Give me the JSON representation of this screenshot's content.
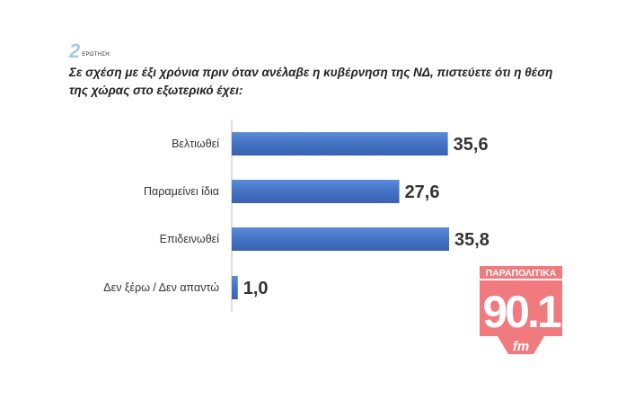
{
  "question": {
    "number": "2",
    "label": "ΕΡΩΤΗΣΗ:",
    "text": "Σε σχέση με έξι χρόνια πριν όταν ανέλαβε η κυβέρνηση της ΝΔ, πιστεύετε ότι η θέση της χώρας στο εξωτερικό έχει:"
  },
  "chart_data": {
    "type": "bar",
    "orientation": "horizontal",
    "categories": [
      "Βελτιωθεί",
      "Παραμείνει ίδια",
      "Επιδεινωθεί",
      "Δεν ξέρω / Δεν απαντώ"
    ],
    "values": [
      35.6,
      27.6,
      35.8,
      1.0
    ],
    "value_labels": [
      "35,6",
      "27,6",
      "35,8",
      "1,0"
    ],
    "xlim": [
      0,
      40
    ],
    "grid": false,
    "legend": "none",
    "bar_color": "#4472c4"
  },
  "watermark": {
    "top_text": "ΠΑΡΑΠΟΛΙΤΙΚΑ",
    "number": "90.1",
    "unit": "fm",
    "color": "#e8222a"
  }
}
